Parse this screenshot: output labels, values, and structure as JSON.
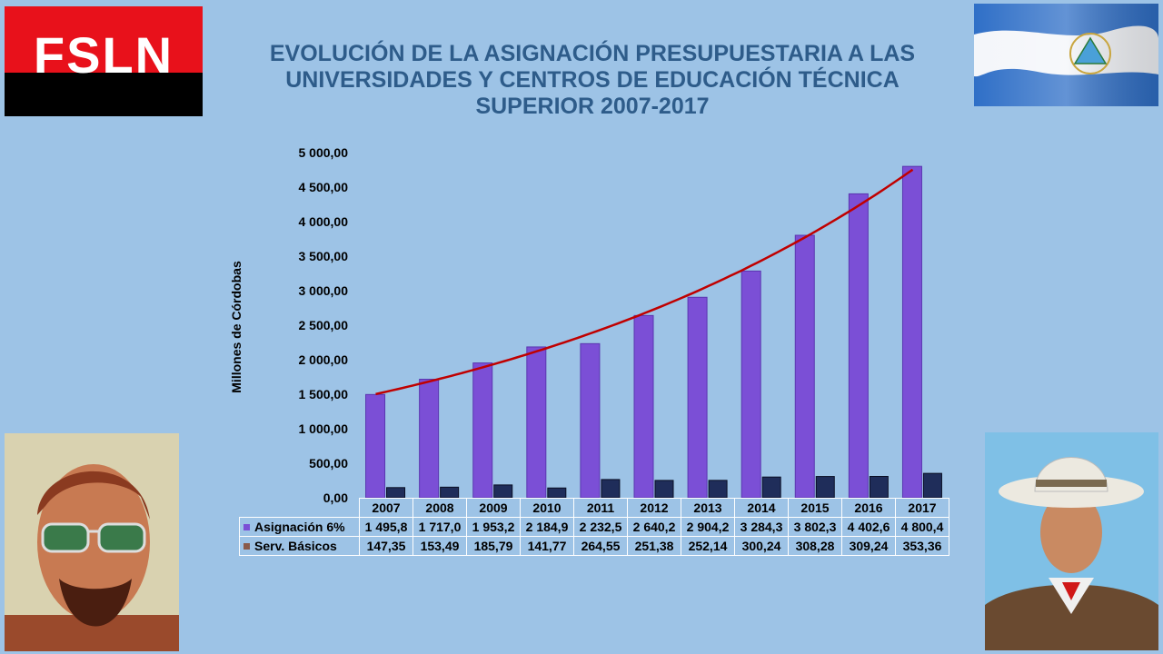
{
  "logo": {
    "text": "FSLN"
  },
  "title": "EVOLUCIÓN DE LA ASIGNACIÓN PRESUPUESTARIA A LAS UNIVERSIDADES Y CENTROS DE EDUCACIÓN TÉCNICA SUPERIOR 2007-2017",
  "colors": {
    "background": "#9dc3e6",
    "title": "#2e5c8a",
    "series1": "#7b4fd6",
    "series2": "#1f2d5a",
    "trendline": "#c00000"
  },
  "chart_data": {
    "type": "bar",
    "ylabel": "Millones de Córdobas",
    "ylim": [
      0,
      5000
    ],
    "yticks": [
      "0,00",
      "500,00",
      "1 000,00",
      "1 500,00",
      "2 000,00",
      "2 500,00",
      "3 000,00",
      "3 500,00",
      "4 000,00",
      "4 500,00",
      "5 000,00"
    ],
    "categories": [
      "2007",
      "2008",
      "2009",
      "2010",
      "2011",
      "2012",
      "2013",
      "2014",
      "2015",
      "2016",
      "2017"
    ],
    "series": [
      {
        "name": "Asignación 6%",
        "values": [
          1495.8,
          1717.0,
          1953.2,
          2184.9,
          2232.5,
          2640.2,
          2904.2,
          3284.3,
          3802.3,
          4402.6,
          4800.4
        ],
        "labels": [
          "1 495,8",
          "1 717,0",
          "1 953,2",
          "2 184,9",
          "2 232,5",
          "2 640,2",
          "2 904,2",
          "3 284,3",
          "3 802,3",
          "4 402,6",
          "4 800,4"
        ]
      },
      {
        "name": "Serv. Básicos",
        "values": [
          147.35,
          153.49,
          185.79,
          141.77,
          264.55,
          251.38,
          252.14,
          300.24,
          308.28,
          309.24,
          353.36
        ],
        "labels": [
          "147,35",
          "153,49",
          "185,79",
          "141,77",
          "264,55",
          "251,38",
          "252,14",
          "300,24",
          "308,28",
          "309,24",
          "353,36"
        ]
      }
    ],
    "trendline": "exponential, series Asignación 6%",
    "legend": "data table below chart"
  }
}
